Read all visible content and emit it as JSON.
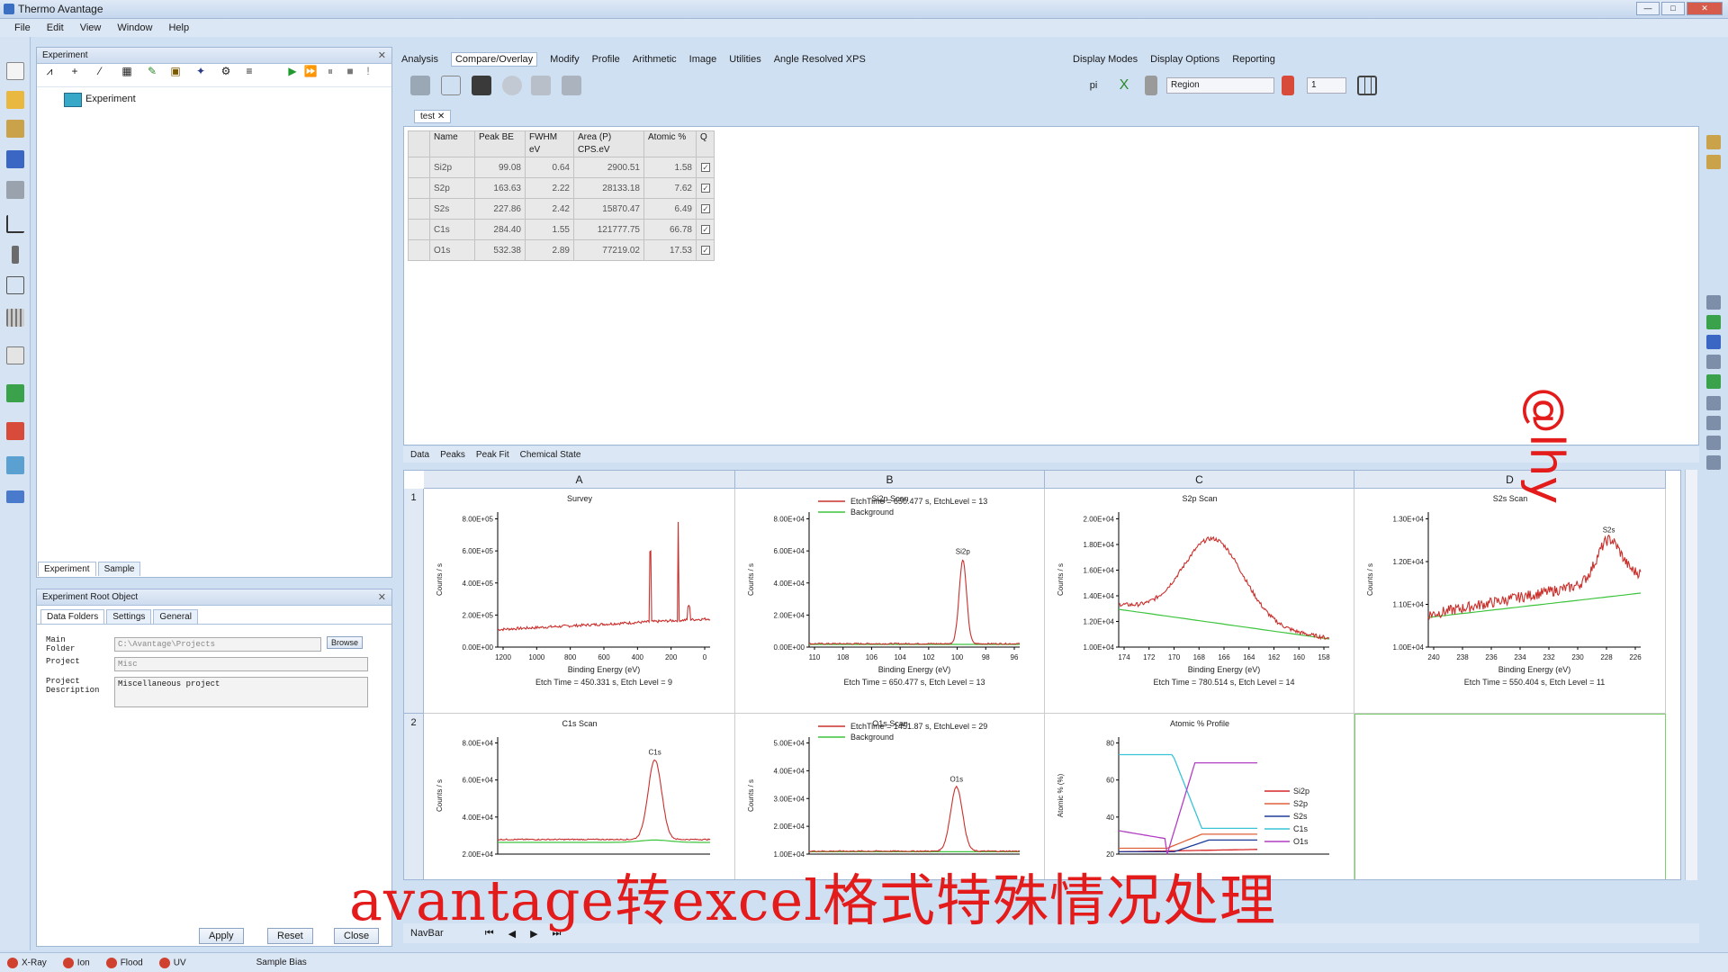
{
  "window": {
    "title": "Thermo Avantage"
  },
  "menu": [
    "File",
    "Edit",
    "View",
    "Window",
    "Help"
  ],
  "experiment_panel": {
    "title": "Experiment",
    "tree_root": "Experiment",
    "bottom_tabs": [
      "Experiment",
      "Sample"
    ]
  },
  "root_object_panel": {
    "title": "Experiment Root Object",
    "tabs": [
      "Data Folders",
      "Settings",
      "General"
    ],
    "fields": [
      {
        "label": "Main Folder",
        "value": "C:\\Avantage\\Projects",
        "action": "Browse"
      },
      {
        "label": "Project",
        "value": "Misc"
      },
      {
        "label": "Project Description",
        "value": "Miscellaneous project"
      }
    ],
    "buttons": [
      "Apply",
      "Reset",
      "Close"
    ]
  },
  "ribbon": {
    "tabs": [
      "Analysis",
      "Compare/Overlay",
      "Modify",
      "Profile",
      "Arithmetic",
      "Image",
      "Utilities",
      "Angle Resolved XPS"
    ],
    "active_tab": "Compare/Overlay",
    "right_tabs": [
      "Display Modes",
      "Display Options",
      "Reporting"
    ],
    "region_select": "Region",
    "page_number": "1"
  },
  "document": {
    "tab": "test",
    "table": {
      "headers": [
        "Name",
        "Peak BE",
        "FWHM eV",
        "Area (P) CPS.eV",
        "Atomic %",
        "Q"
      ],
      "rows": [
        [
          "Si2p",
          "99.08",
          "0.64",
          "2900.51",
          "1.58"
        ],
        [
          "S2p",
          "163.63",
          "2.22",
          "28133.18",
          "7.62"
        ],
        [
          "S2s",
          "227.86",
          "2.42",
          "15870.47",
          "6.49"
        ],
        [
          "C1s",
          "284.40",
          "1.55",
          "121777.75",
          "66.78"
        ],
        [
          "O1s",
          "532.38",
          "2.89",
          "77219.02",
          "17.53"
        ]
      ]
    },
    "bottom_tabs": [
      "Data",
      "Peaks",
      "Peak Fit",
      "Chemical State"
    ]
  },
  "grid": {
    "columns": [
      "A",
      "B",
      "C",
      "D"
    ],
    "rows": [
      "1",
      "2"
    ]
  },
  "chart_data": [
    {
      "type": "line",
      "title": "Survey",
      "xlabel": "Binding Energy (eV)",
      "ylabel": "Counts / s",
      "x_ticks": [
        "1200",
        "1000",
        "800",
        "600",
        "400",
        "200",
        "0"
      ],
      "y_ticks": [
        "0.00E+00",
        "2.00E+05",
        "4.00E+05",
        "6.00E+05",
        "8.00E+05"
      ],
      "footer": "Etch Time = 450.331 s, Etch Level = 9"
    },
    {
      "type": "line",
      "title": "Si2p Scan",
      "xlabel": "Binding Energy (eV)",
      "ylabel": "Counts / s",
      "legend": [
        "EtchTime = 650.477 s, EtchLevel = 13",
        "Background"
      ],
      "x_ticks": [
        "110",
        "108",
        "106",
        "104",
        "102",
        "100",
        "98",
        "96"
      ],
      "y_ticks": [
        "0.00E+00",
        "2.00E+04",
        "4.00E+04",
        "6.00E+04",
        "8.00E+04"
      ],
      "peak_label": "Si2p",
      "footer": "Etch Time = 650.477 s, Etch Level = 13"
    },
    {
      "type": "line",
      "title": "S2p Scan",
      "xlabel": "Binding Energy (eV)",
      "ylabel": "Counts / s",
      "x_ticks": [
        "174",
        "172",
        "170",
        "168",
        "166",
        "164",
        "162",
        "160",
        "158"
      ],
      "y_ticks": [
        "1.00E+04",
        "1.20E+04",
        "1.40E+04",
        "1.60E+04",
        "1.80E+04",
        "2.00E+04"
      ],
      "footer": "Etch Time = 780.514 s, Etch Level = 14"
    },
    {
      "type": "line",
      "title": "S2s Scan",
      "xlabel": "Binding Energy (eV)",
      "ylabel": "Counts / s",
      "x_ticks": [
        "240",
        "238",
        "236",
        "234",
        "232",
        "230",
        "228",
        "226"
      ],
      "y_ticks": [
        "1.00E+04",
        "1.10E+04",
        "1.20E+04",
        "1.30E+04"
      ],
      "peak_label": "S2s",
      "footer": "Etch Time = 550.404 s, Etch Level = 11"
    },
    {
      "type": "line",
      "title": "C1s Scan",
      "ylabel": "Counts / s",
      "y_ticks": [
        "2.00E+04",
        "4.00E+04",
        "6.00E+04",
        "8.00E+04"
      ],
      "peak_label": "C1s"
    },
    {
      "type": "line",
      "title": "O1s Scan",
      "ylabel": "Counts / s",
      "legend": [
        "EtchTime = 1451.87 s, EtchLevel = 29",
        "Background"
      ],
      "y_ticks": [
        "1.00E+04",
        "2.00E+04",
        "3.00E+04",
        "4.00E+04",
        "5.00E+04"
      ],
      "peak_label": "O1s"
    },
    {
      "type": "line",
      "title": "Atomic % Profile",
      "ylabel": "Atomic % (%)",
      "y_ticks": [
        "20",
        "40",
        "60",
        "80"
      ],
      "legend": [
        "Si2p",
        "S2p",
        "S2s",
        "C1s",
        "O1s"
      ],
      "series_colors": [
        "#d62728",
        "#e0603a",
        "#1f3b9a",
        "#38c4d6",
        "#b23ec4"
      ]
    }
  ],
  "navbar": {
    "label": "NavBar"
  },
  "status": [
    "X-Ray",
    "Ion",
    "Flood",
    "UV",
    "Sample Bias"
  ],
  "overlay_caption": "avantage转excel格式特殊情况处理",
  "watermark": "@lhy"
}
